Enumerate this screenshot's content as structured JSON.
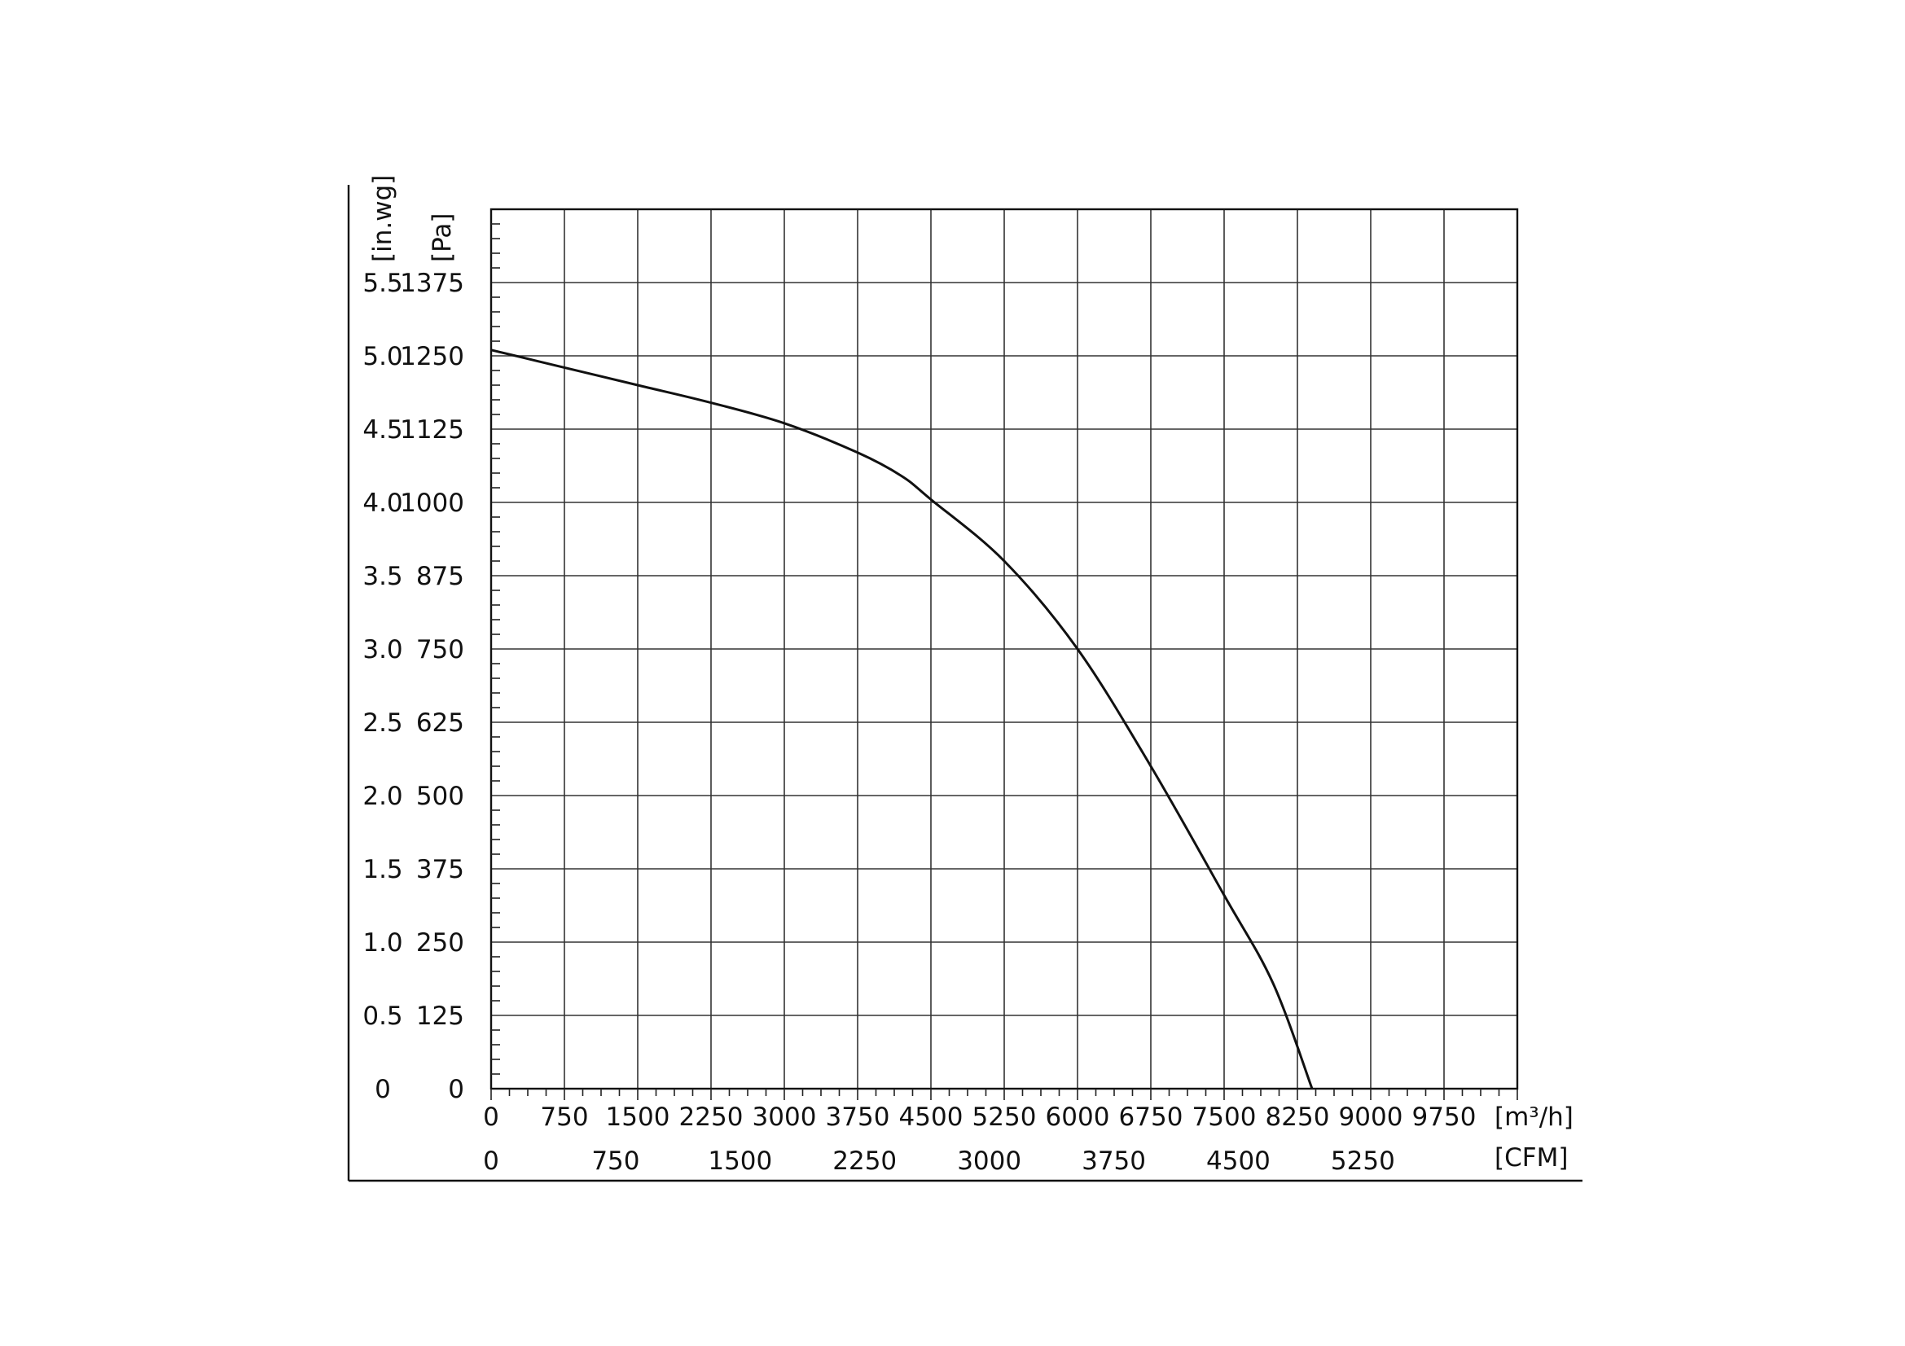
{
  "chart_data": {
    "type": "line",
    "title": "",
    "x_unit_primary": "[m³/h]",
    "x_unit_secondary": "[CFM]",
    "y_unit_primary": "[Pa]",
    "y_unit_secondary": "[in.wg]",
    "xlim": [
      0,
      10500
    ],
    "ylim": [
      0,
      1500
    ],
    "x_ticks_m3h": [
      "0",
      "750",
      "1500",
      "2250",
      "3000",
      "3750",
      "4500",
      "5250",
      "6000",
      "6750",
      "7500",
      "8250",
      "9000",
      "9750"
    ],
    "x_ticks_cfm": [
      "0",
      "750",
      "1500",
      "2250",
      "3000",
      "3750",
      "4500",
      "5250"
    ],
    "y_ticks_pa": [
      "0",
      "125",
      "250",
      "375",
      "500",
      "625",
      "750",
      "875",
      "1000",
      "1125",
      "1250",
      "1375"
    ],
    "y_ticks_inwg": [
      "0",
      "0.5",
      "1.0",
      "1.5",
      "2.0",
      "2.5",
      "3.0",
      "3.5",
      "4.0",
      "4.5",
      "5.0",
      "5.5"
    ],
    "grid": true,
    "series": [
      {
        "x": [
          0,
          750,
          1500,
          2250,
          3000,
          3750,
          4200,
          4500,
          5250,
          6000,
          6750,
          7500,
          8000,
          8400
        ],
        "y": [
          1260,
          1230,
          1200,
          1170,
          1135,
          1085,
          1045,
          1005,
          900,
          750,
          550,
          330,
          180,
          0
        ]
      }
    ]
  }
}
